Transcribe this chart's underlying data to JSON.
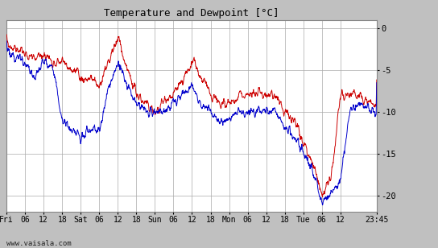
{
  "title": "Temperature and Dewpoint [°C]",
  "title_fontsize": 9,
  "ylabel_right_ticks": [
    0,
    -5,
    -10,
    -15,
    -20
  ],
  "x_tick_labels": [
    "Fri",
    "06",
    "12",
    "18",
    "Sat",
    "06",
    "12",
    "18",
    "Sun",
    "06",
    "12",
    "18",
    "Mon",
    "06",
    "12",
    "18",
    "Tue",
    "06",
    "12",
    "23:45"
  ],
  "tick_hours": [
    0,
    6,
    12,
    18,
    24,
    30,
    36,
    42,
    48,
    54,
    60,
    66,
    72,
    78,
    84,
    90,
    96,
    102,
    108,
    119.75
  ],
  "total_hours": 119.75,
  "ylim": [
    -22,
    1
  ],
  "plot_bg_color": "#ffffff",
  "grid_color": "#aaaaaa",
  "temp_color": "#cc0000",
  "dewpoint_color": "#0000cc",
  "watermark": "www.vaisala.com",
  "outer_bg": "#c0c0c0",
  "n_points": 1440
}
